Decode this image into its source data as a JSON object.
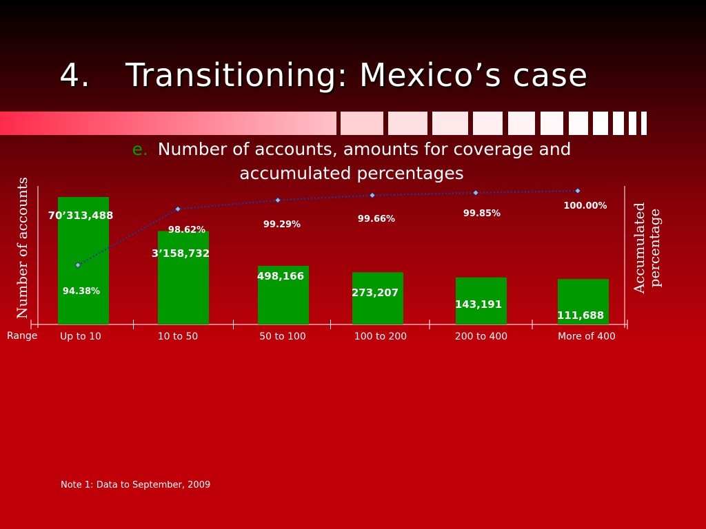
{
  "slide": {
    "title_number": "4.",
    "title_text": "Transitioning: Mexico’s case",
    "subtitle_marker": "e.",
    "subtitle_line1": "Number of accounts, amounts for coverage and",
    "subtitle_line2": "accumulated percentages",
    "note": "Note 1: Data to September, 2009"
  },
  "colors": {
    "bar": "#009900",
    "line": "#1a3a9c",
    "marker_fill": "#9fb8e8",
    "subtitle_marker": "#00a000"
  },
  "chart_data": {
    "type": "bar",
    "xlabel": "Range",
    "ylabel": "Number of accounts",
    "y2label": "Accumulated percentage",
    "categories": [
      "Up to 10",
      "10 to 50",
      "50 to 100",
      "100 to 200",
      "200 to 400",
      "More of 400"
    ],
    "series": [
      {
        "name": "Number of accounts",
        "type": "bar",
        "values": [
          70313488,
          3158732,
          498166,
          273207,
          143191,
          111688
        ],
        "labels": [
          "70’313,488",
          "3’158,732",
          "498,166",
          "273,207",
          "143,191",
          "111,688"
        ]
      },
      {
        "name": "Accumulated percentage",
        "type": "line",
        "values": [
          94.38,
          98.62,
          99.29,
          99.66,
          99.85,
          100.0
        ],
        "labels": [
          "94.38%",
          "98.62%",
          "99.29%",
          "99.66%",
          "99.85%",
          "100.00%"
        ]
      }
    ],
    "y_scale": "broken",
    "grid": false,
    "legend": "none"
  }
}
